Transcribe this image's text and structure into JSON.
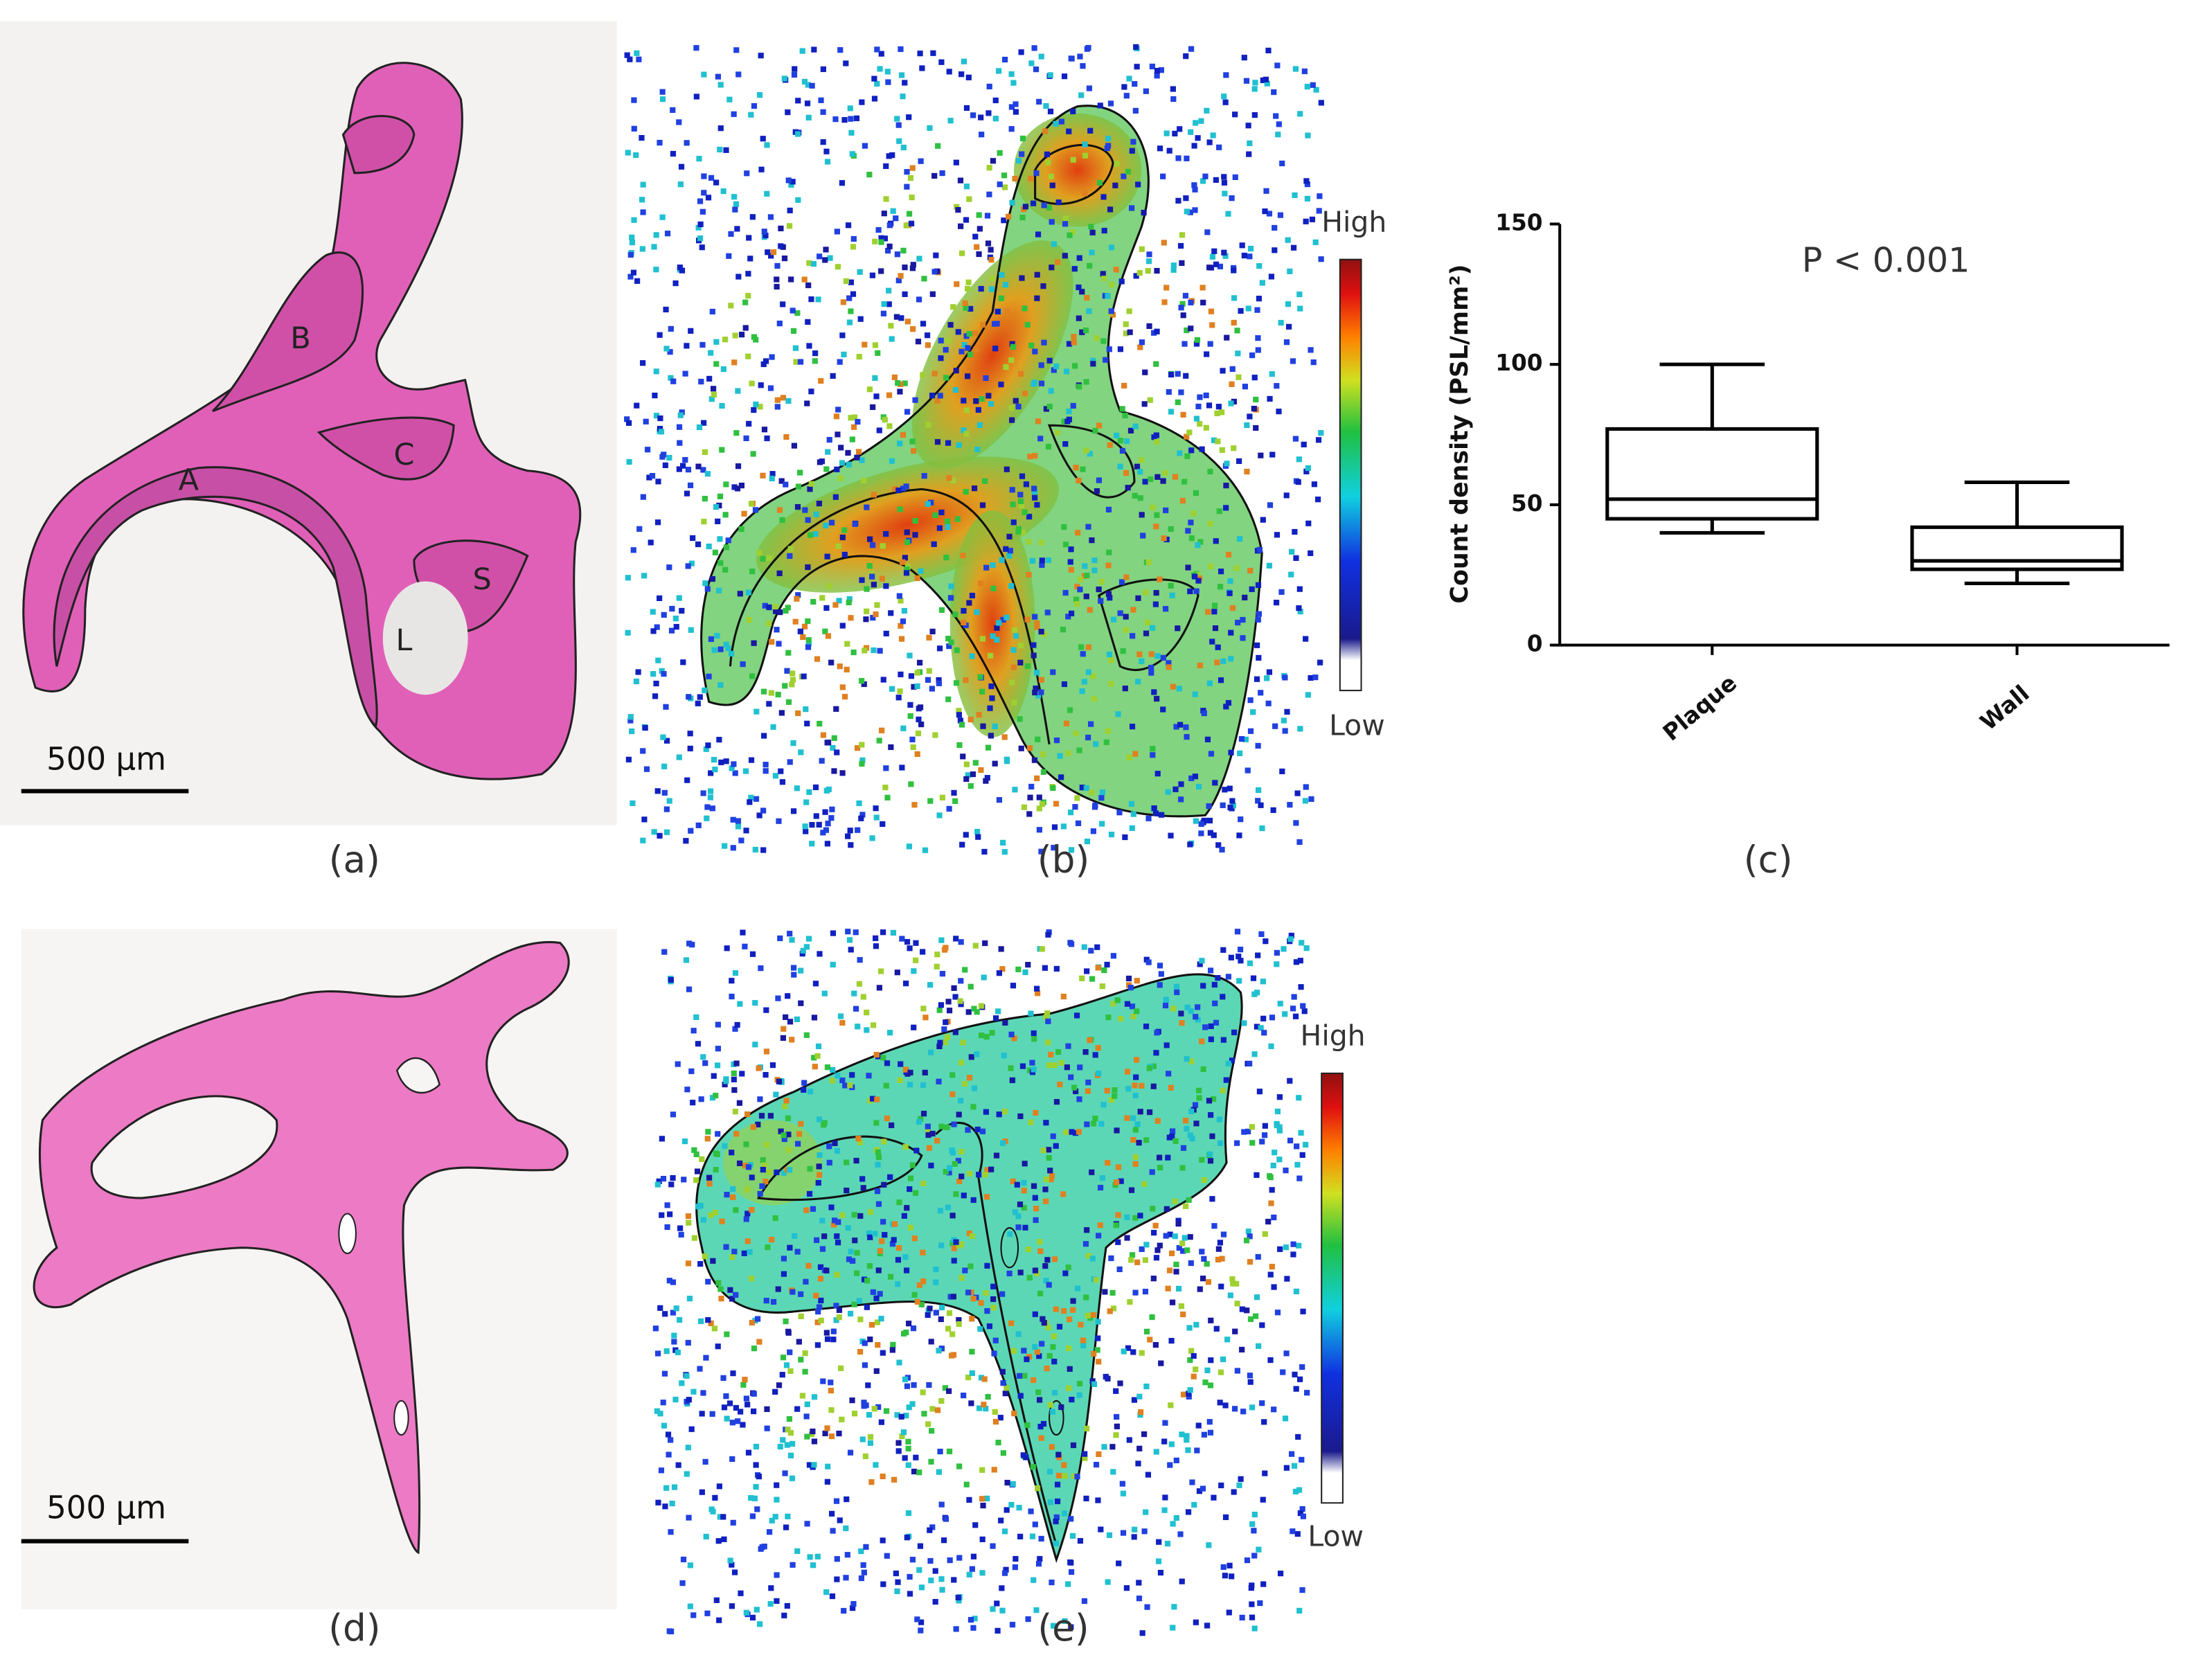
{
  "chart_data": {
    "type": "box",
    "ylabel": "Count density (PSL/mm²)",
    "annotation": "P < 0.001",
    "categories": [
      "Plaque",
      "Wall"
    ],
    "boxes": [
      {
        "min": 40,
        "q1": 45,
        "median": 52,
        "q3": 77,
        "max": 100
      },
      {
        "min": 22,
        "q1": 27,
        "median": 30,
        "q3": 42,
        "max": 58
      }
    ],
    "ylim": [
      0,
      150
    ],
    "yticks": [
      0,
      50,
      100,
      150
    ],
    "color": "#000000"
  },
  "panels": {
    "labels": [
      "(a)",
      "(b)",
      "(c)",
      "(d)",
      "(e)"
    ],
    "scale_bars": [
      "500 µm",
      "500 µm"
    ],
    "colorbars": [
      {
        "high": "High",
        "low": "Low"
      },
      {
        "high": "High",
        "low": "Low"
      }
    ],
    "tissue_labels": [
      "A",
      "B",
      "C",
      "S",
      "L"
    ]
  }
}
